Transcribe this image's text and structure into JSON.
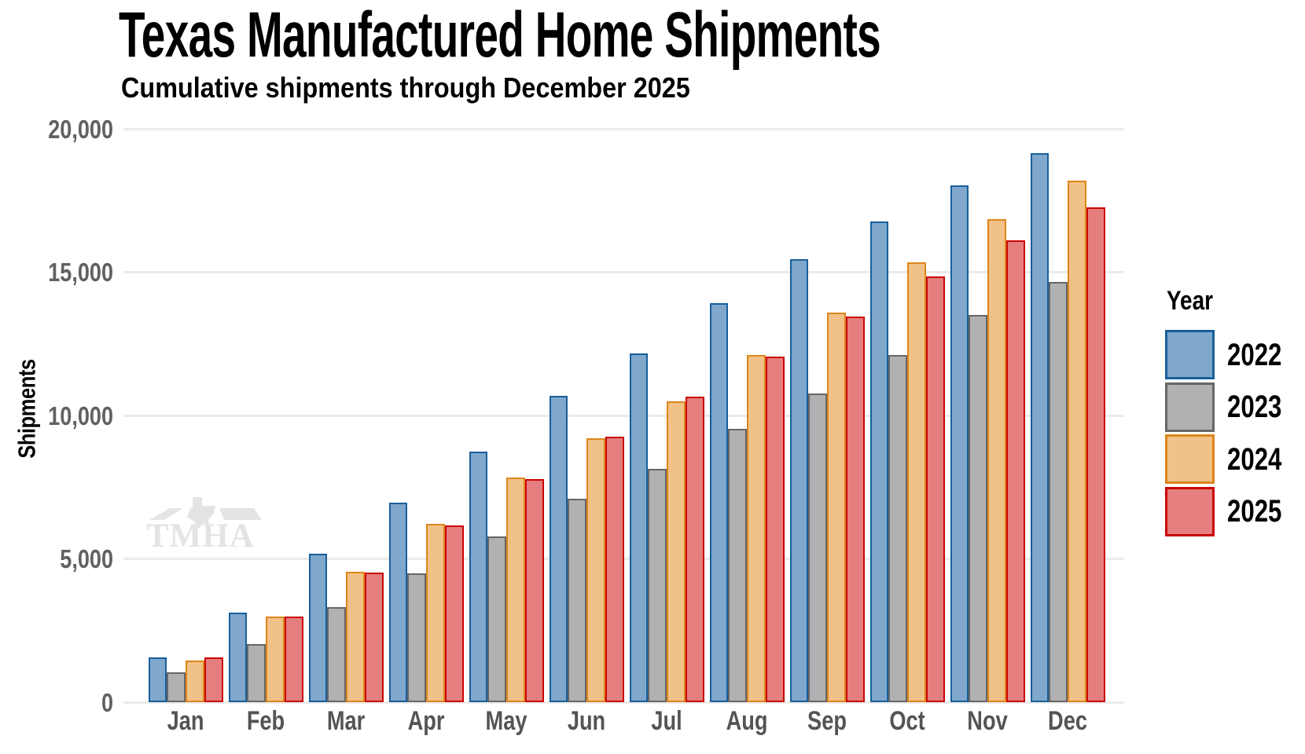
{
  "header": {
    "title": "Texas Manufactured Home Shipments",
    "subtitle": "Cumulative shipments through December 2025"
  },
  "watermark": {
    "text": "TMHA"
  },
  "axes": {
    "y_title": "Shipments",
    "y_max": 20000,
    "y_ticks": [
      {
        "value": 0,
        "label": "0"
      },
      {
        "value": 5000,
        "label": "5,000"
      },
      {
        "value": 10000,
        "label": "10,000"
      },
      {
        "value": 15000,
        "label": "15,000"
      },
      {
        "value": 20000,
        "label": "20,000"
      }
    ]
  },
  "legend": {
    "title": "Year",
    "items": [
      {
        "label": "2022",
        "fill": "#7FA8CC",
        "stroke": "#185F9B"
      },
      {
        "label": "2023",
        "fill": "#B1B1B3",
        "stroke": "#666666"
      },
      {
        "label": "2024",
        "fill": "#F0C287",
        "stroke": "#DE851B"
      },
      {
        "label": "2025",
        "fill": "#E57E7F",
        "stroke": "#CA0405"
      }
    ]
  },
  "colors": {
    "gridline": "#EBEBEB",
    "y_tick_text": "#616161",
    "x_tick_text": "#545454",
    "watermark": "#E4E4E7"
  },
  "chart_data": {
    "type": "bar",
    "title": "Texas Manufactured Home Shipments",
    "subtitle": "Cumulative shipments through December 2025",
    "xlabel": "",
    "ylabel": "Shipments",
    "ylim": [
      0,
      20000
    ],
    "grid": true,
    "legend_position": "right",
    "legend_title": "Year",
    "categories": [
      "Jan",
      "Feb",
      "Mar",
      "Apr",
      "May",
      "Jun",
      "Jul",
      "Aug",
      "Sep",
      "Oct",
      "Nov",
      "Dec"
    ],
    "series": [
      {
        "name": "2022",
        "fill": "#7FA8CC",
        "stroke": "#185F9B",
        "values": [
          1550,
          3120,
          5190,
          6950,
          8730,
          10680,
          12160,
          13930,
          15450,
          16780,
          18040,
          19150
        ]
      },
      {
        "name": "2023",
        "fill": "#B1B1B3",
        "stroke": "#666666",
        "values": [
          1040,
          2030,
          3320,
          4480,
          5770,
          7110,
          8140,
          9530,
          10770,
          12100,
          13500,
          14670
        ]
      },
      {
        "name": "2024",
        "fill": "#F0C287",
        "stroke": "#DE851B",
        "values": [
          1460,
          2990,
          4560,
          6210,
          7830,
          9210,
          10490,
          12100,
          13580,
          15330,
          16850,
          18180
        ]
      },
      {
        "name": "2025",
        "fill": "#E57E7F",
        "stroke": "#CA0405",
        "values": [
          1570,
          3000,
          4510,
          6160,
          7770,
          9260,
          10660,
          12050,
          13450,
          14840,
          16100,
          17270
        ]
      }
    ]
  }
}
